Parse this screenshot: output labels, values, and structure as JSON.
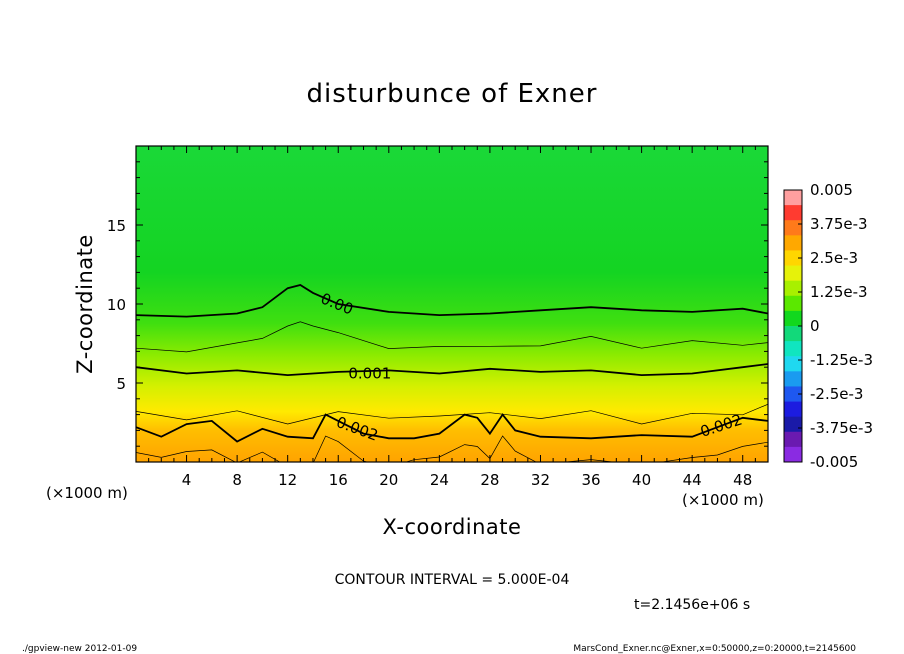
{
  "chart_data": {
    "type": "heatmap",
    "title": "disturbunce of Exner",
    "xlabel": "X-coordinate",
    "ylabel": "Z-coordinate",
    "xlim": [
      0,
      50
    ],
    "ylim": [
      0,
      20
    ],
    "x_ticks": [
      4,
      8,
      12,
      16,
      20,
      24,
      28,
      32,
      36,
      40,
      44,
      48
    ],
    "y_ticks": [
      5,
      10,
      15
    ],
    "x_unit": "(×1000 m)",
    "x_unit_right": "(×1000 m)",
    "colorbar": {
      "labels": [
        "0.005",
        "3.75e-3",
        "2.5e-3",
        "1.25e-3",
        "0",
        "-1.25e-3",
        "-2.5e-3",
        "-3.75e-3",
        "-0.005"
      ],
      "range": [
        -0.005,
        0.005
      ],
      "colors": [
        "#FF9F9F",
        "#FF3B30",
        "#FF7A1A",
        "#FFA800",
        "#FFD600",
        "#E6F20A",
        "#A8F000",
        "#5BE800",
        "#12D81E",
        "#12D97A",
        "#10E5C0",
        "#1FD8F0",
        "#1A9BF0",
        "#1E58F0",
        "#1C1CE0",
        "#1A1AA8",
        "#6A1AB0",
        "#8A2BE2"
      ]
    },
    "contours": [
      {
        "label": "0.00",
        "z_profile": [
          [
            0,
            9.3
          ],
          [
            4,
            9.2
          ],
          [
            8,
            9.4
          ],
          [
            10,
            9.8
          ],
          [
            12,
            11.0
          ],
          [
            13,
            11.2
          ],
          [
            14,
            10.7
          ],
          [
            16,
            10.0
          ],
          [
            20,
            9.5
          ],
          [
            24,
            9.3
          ],
          [
            28,
            9.4
          ],
          [
            32,
            9.6
          ],
          [
            36,
            9.8
          ],
          [
            40,
            9.6
          ],
          [
            44,
            9.5
          ],
          [
            48,
            9.7
          ],
          [
            50,
            9.4
          ]
        ]
      },
      {
        "label": "0.001",
        "z_profile": [
          [
            0,
            6.0
          ],
          [
            4,
            5.6
          ],
          [
            8,
            5.8
          ],
          [
            12,
            5.5
          ],
          [
            16,
            5.7
          ],
          [
            20,
            5.8
          ],
          [
            24,
            5.6
          ],
          [
            28,
            5.9
          ],
          [
            32,
            5.7
          ],
          [
            36,
            5.8
          ],
          [
            40,
            5.5
          ],
          [
            44,
            5.6
          ],
          [
            48,
            6.0
          ],
          [
            50,
            6.2
          ]
        ]
      },
      {
        "label": "0.002",
        "z_profile": [
          [
            0,
            2.2
          ],
          [
            2,
            1.6
          ],
          [
            4,
            2.4
          ],
          [
            6,
            2.6
          ],
          [
            8,
            1.3
          ],
          [
            10,
            2.1
          ],
          [
            12,
            1.6
          ],
          [
            14,
            1.5
          ],
          [
            15,
            3.0
          ],
          [
            16,
            2.6
          ],
          [
            18,
            1.8
          ],
          [
            20,
            1.5
          ],
          [
            22,
            1.5
          ],
          [
            24,
            1.8
          ],
          [
            26,
            3.0
          ],
          [
            27,
            2.8
          ],
          [
            28,
            1.8
          ],
          [
            29,
            3.0
          ],
          [
            30,
            2.0
          ],
          [
            32,
            1.6
          ],
          [
            36,
            1.5
          ],
          [
            40,
            1.7
          ],
          [
            44,
            1.6
          ],
          [
            46,
            2.2
          ],
          [
            48,
            2.8
          ],
          [
            50,
            2.6
          ]
        ]
      }
    ],
    "annotations": [
      "CONTOUR INTERVAL = 5.000E-04",
      "t=2.1456e+06 s"
    ]
  },
  "footer": {
    "left": "./gpview-new   2012-01-09",
    "right": "MarsCond_Exner.nc@Exner,x=0:50000,z=0:20000,t=2145600"
  }
}
